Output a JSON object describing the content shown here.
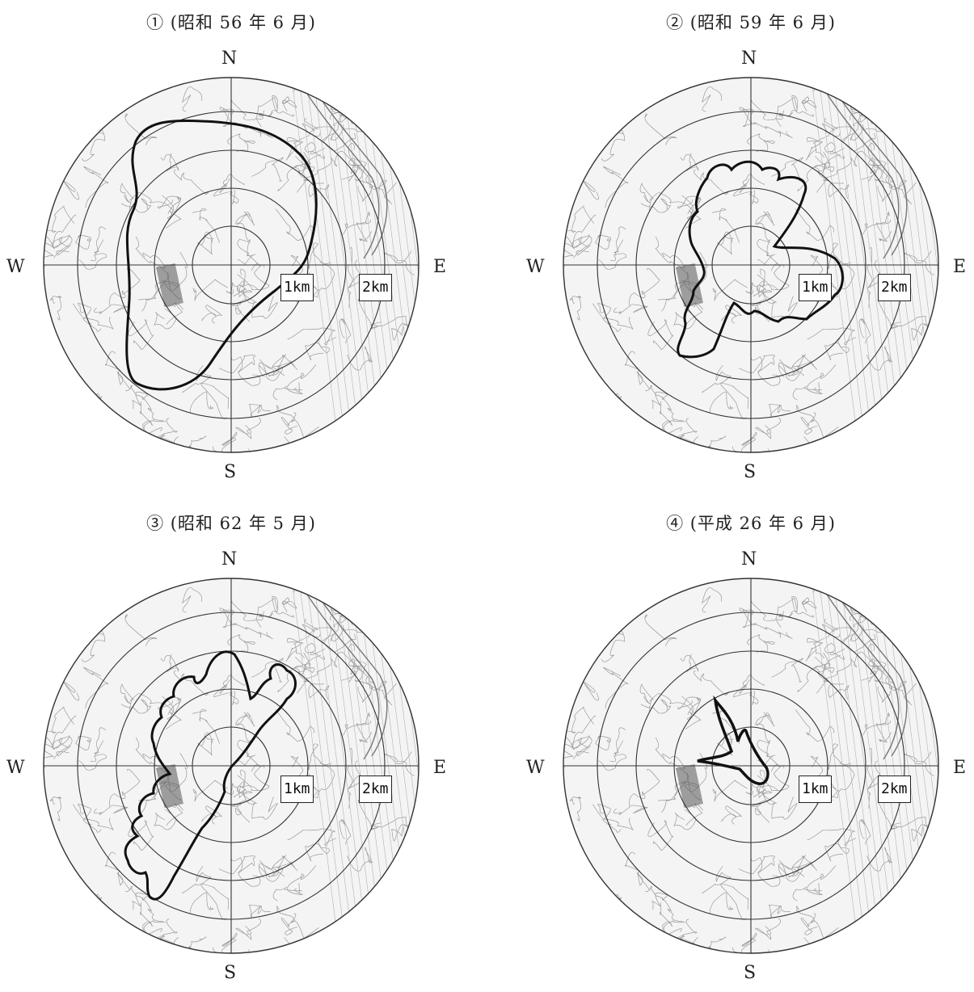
{
  "panels": [
    {
      "title": "① (昭和 56 年 6 月)"
    },
    {
      "title": "② (昭和 59 年 6 月)"
    },
    {
      "title": "③ (昭和 62 年 5 月)"
    },
    {
      "title": "④ (平成 26 年 6 月)"
    }
  ],
  "compass": {
    "north": "N",
    "south": "S",
    "west": "W",
    "east": "E"
  },
  "distance_labels": [
    "1km",
    "2km"
  ],
  "colors": {
    "outline": "#111111",
    "rings": "#333333",
    "map_lines": "#9a9a9a"
  }
}
